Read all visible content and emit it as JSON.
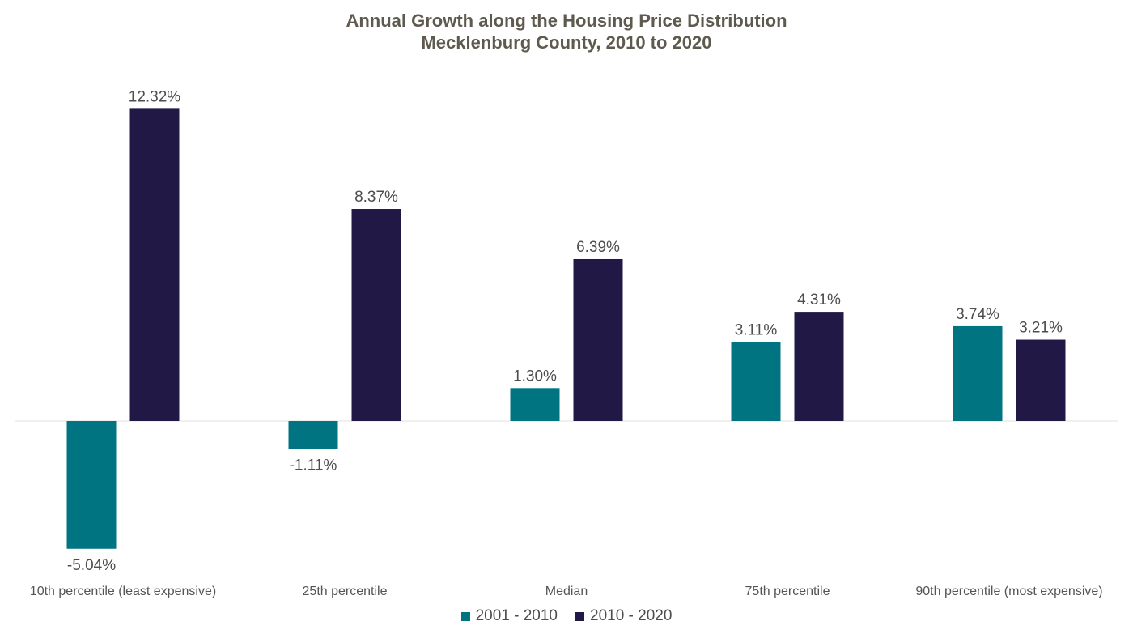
{
  "chart_data": {
    "type": "bar",
    "title": "Annual Growth along the Housing Price Distribution",
    "subtitle": "Mecklenburg County, 2010 to 2020",
    "categories": [
      "10th percentile (least expensive)",
      "25th percentile",
      "Median",
      "75th percentile",
      "90th percentile (most expensive)"
    ],
    "series": [
      {
        "name": "2001 - 2010",
        "color": "#007481",
        "values": [
          -5.04,
          -1.11,
          1.3,
          3.11,
          3.74
        ],
        "labels": [
          "-5.04%",
          "-1.11%",
          "1.30%",
          "3.11%",
          "3.74%"
        ]
      },
      {
        "name": "2010 - 2020",
        "color": "#211845",
        "values": [
          12.32,
          8.37,
          6.39,
          4.31,
          3.21
        ],
        "labels": [
          "12.32%",
          "8.37%",
          "6.39%",
          "4.31%",
          "3.21%"
        ]
      }
    ],
    "ylim": [
      -6.2,
      13.8
    ],
    "grid": false,
    "legend_position": "bottom",
    "axis_color": "#e0e0e0"
  }
}
